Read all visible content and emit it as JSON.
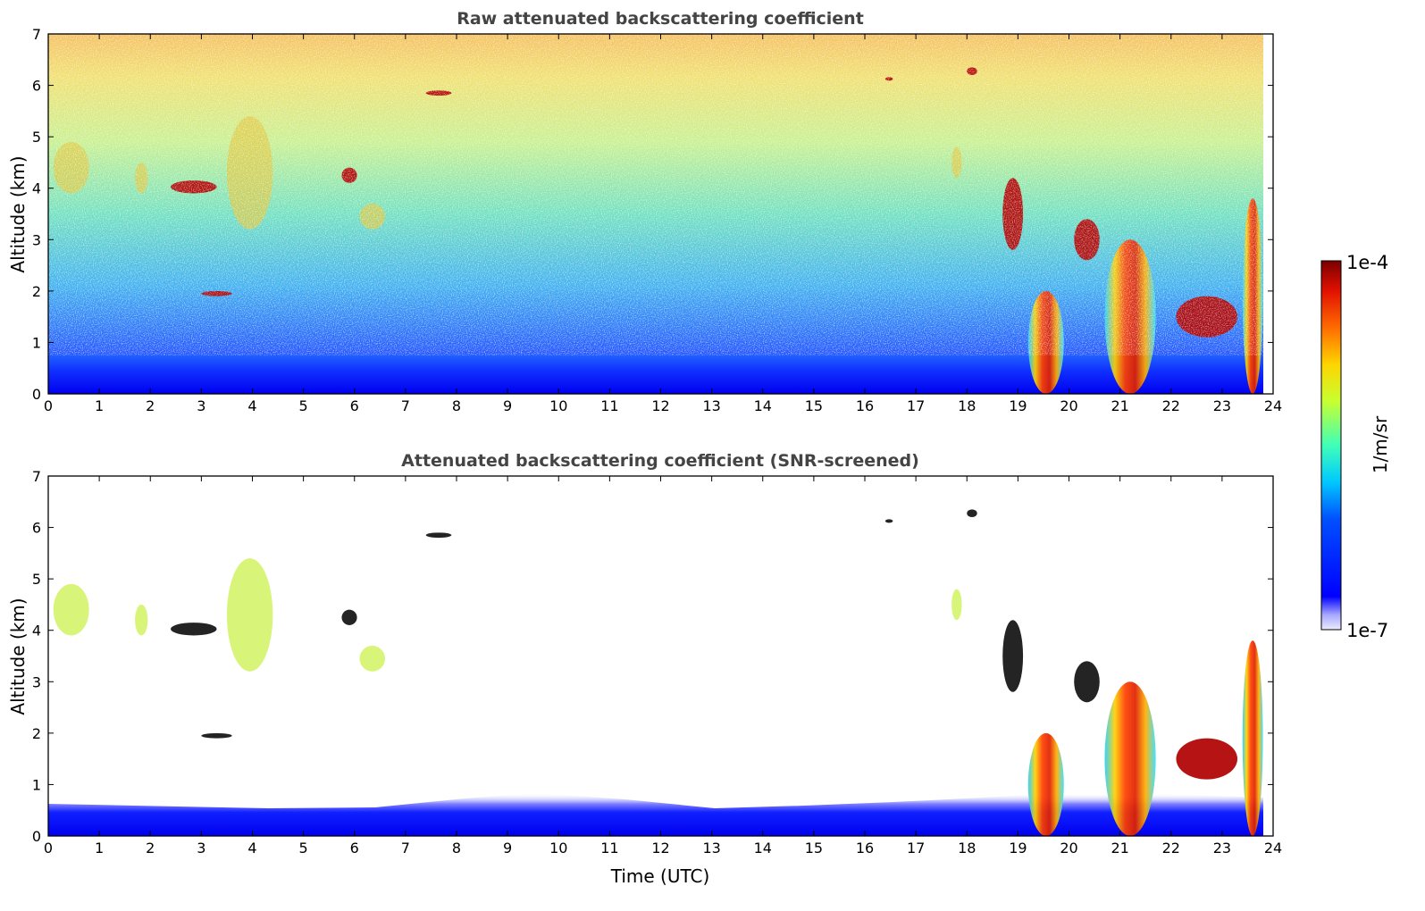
{
  "chart_data": [
    {
      "type": "heatmap",
      "title": "Raw attenuated backscattering coefficient",
      "xlabel": "",
      "ylabel": "Altitude (km)",
      "xlim": [
        0,
        24
      ],
      "ylim": [
        0,
        7
      ],
      "xticks": [
        "0",
        "1",
        "2",
        "3",
        "4",
        "5",
        "6",
        "7",
        "8",
        "9",
        "10",
        "11",
        "12",
        "13",
        "14",
        "15",
        "16",
        "17",
        "18",
        "19",
        "20",
        "21",
        "22",
        "23",
        "24"
      ],
      "yticks": [
        "0",
        "1",
        "2",
        "3",
        "4",
        "5",
        "6",
        "7"
      ],
      "colormap": "jet",
      "features": [
        {
          "kind": "cirrus",
          "t": [
            2.4,
            3.3
          ],
          "z": [
            3.9,
            4.15
          ],
          "level": "high"
        },
        {
          "kind": "cirrus",
          "t": [
            5.75,
            6.05
          ],
          "z": [
            4.1,
            4.4
          ],
          "level": "high"
        },
        {
          "kind": "cirrus",
          "t": [
            7.4,
            7.9
          ],
          "z": [
            5.8,
            5.9
          ],
          "level": "high"
        },
        {
          "kind": "cirrus",
          "t": [
            16.4,
            16.55
          ],
          "z": [
            6.1,
            6.15
          ],
          "level": "high"
        },
        {
          "kind": "cirrus",
          "t": [
            18.0,
            18.2
          ],
          "z": [
            6.2,
            6.35
          ],
          "level": "high"
        },
        {
          "kind": "fall-streak",
          "t": [
            0.1,
            0.8
          ],
          "z": [
            3.9,
            4.9
          ],
          "level": "mid"
        },
        {
          "kind": "fall-streak",
          "t": [
            1.7,
            1.95
          ],
          "z": [
            3.9,
            4.5
          ],
          "level": "mid"
        },
        {
          "kind": "fall-streak",
          "t": [
            3.5,
            4.4
          ],
          "z": [
            3.2,
            5.4
          ],
          "level": "mid"
        },
        {
          "kind": "fall-streak",
          "t": [
            6.1,
            6.6
          ],
          "z": [
            3.2,
            3.7
          ],
          "level": "mid"
        },
        {
          "kind": "fall-streak",
          "t": [
            17.7,
            17.9
          ],
          "z": [
            4.2,
            4.8
          ],
          "level": "mid"
        },
        {
          "kind": "cirrus",
          "t": [
            18.7,
            19.1
          ],
          "z": [
            2.8,
            4.2
          ],
          "level": "high"
        },
        {
          "kind": "cirrus",
          "t": [
            20.1,
            20.6
          ],
          "z": [
            2.6,
            3.4
          ],
          "level": "high"
        },
        {
          "kind": "cirrus",
          "t": [
            3.0,
            3.6
          ],
          "z": [
            1.9,
            2.0
          ],
          "level": "high"
        },
        {
          "kind": "boundary-layer",
          "t": [
            0,
            24
          ],
          "z": [
            0,
            0.45
          ],
          "level": "low"
        },
        {
          "kind": "convective",
          "t": [
            19.2,
            19.9
          ],
          "z": [
            0,
            2.0
          ],
          "level": "high"
        },
        {
          "kind": "convective",
          "t": [
            20.7,
            21.7
          ],
          "z": [
            0,
            3.0
          ],
          "level": "high"
        },
        {
          "kind": "convective",
          "t": [
            23.4,
            23.8
          ],
          "z": [
            0,
            3.8
          ],
          "level": "high"
        },
        {
          "kind": "low-cloud",
          "t": [
            22.1,
            23.3
          ],
          "z": [
            1.1,
            1.9
          ],
          "level": "high"
        }
      ]
    },
    {
      "type": "heatmap",
      "title": "Attenuated backscattering coefficient (SNR-screened)",
      "xlabel": "Time (UTC)",
      "ylabel": "Altitude (km)",
      "xlim": [
        0,
        24
      ],
      "ylim": [
        0,
        7
      ],
      "xticks": [
        "0",
        "1",
        "2",
        "3",
        "4",
        "5",
        "6",
        "7",
        "8",
        "9",
        "10",
        "11",
        "12",
        "13",
        "14",
        "15",
        "16",
        "17",
        "18",
        "19",
        "20",
        "21",
        "22",
        "23",
        "24"
      ],
      "yticks": [
        "0",
        "1",
        "2",
        "3",
        "4",
        "5",
        "6",
        "7"
      ],
      "colormap": "jet",
      "screened": true
    }
  ],
  "colorbar": {
    "label": "1/m/sr",
    "max_label": "1e-4",
    "min_label": "1e-7",
    "range": [
      1e-07,
      0.0001
    ],
    "scale": "log"
  }
}
